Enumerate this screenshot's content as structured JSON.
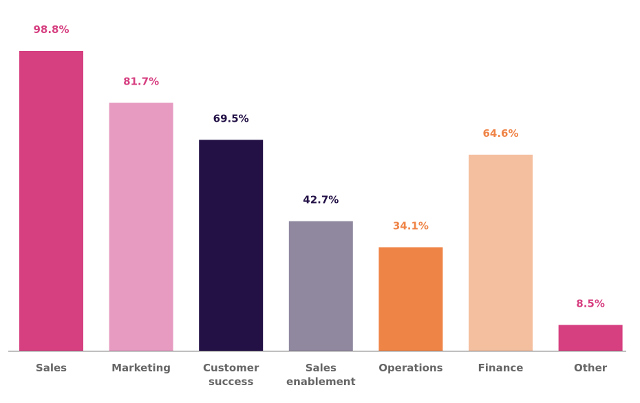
{
  "chart_data": {
    "type": "bar",
    "categories": [
      "Sales",
      "Marketing",
      "Customer success",
      "Sales enablement",
      "Operations",
      "Finance",
      "Other"
    ],
    "category_lines": [
      [
        "Sales"
      ],
      [
        "Marketing"
      ],
      [
        "Customer",
        "success"
      ],
      [
        "Sales",
        "enablement"
      ],
      [
        "Operations"
      ],
      [
        "Finance"
      ],
      [
        "Other"
      ]
    ],
    "values": [
      98.8,
      81.7,
      69.5,
      42.7,
      34.1,
      64.6,
      8.5
    ],
    "value_labels": [
      "98.8%",
      "81.7%",
      "69.5%",
      "42.7%",
      "34.1%",
      "64.6%",
      "8.5%"
    ],
    "bar_colors": [
      "#d63f80",
      "#e79bc1",
      "#231146",
      "#8f889f",
      "#ef8447",
      "#f4bf9f",
      "#d63f80"
    ],
    "label_colors": [
      "#d63f80",
      "#d63f80",
      "#231146",
      "#231146",
      "#ef8447",
      "#ef8447",
      "#d63f80"
    ],
    "axis_color": "#555555",
    "ylim": [
      0,
      100
    ],
    "grid": false,
    "legend": "none",
    "title": "",
    "xlabel": "",
    "ylabel": ""
  }
}
